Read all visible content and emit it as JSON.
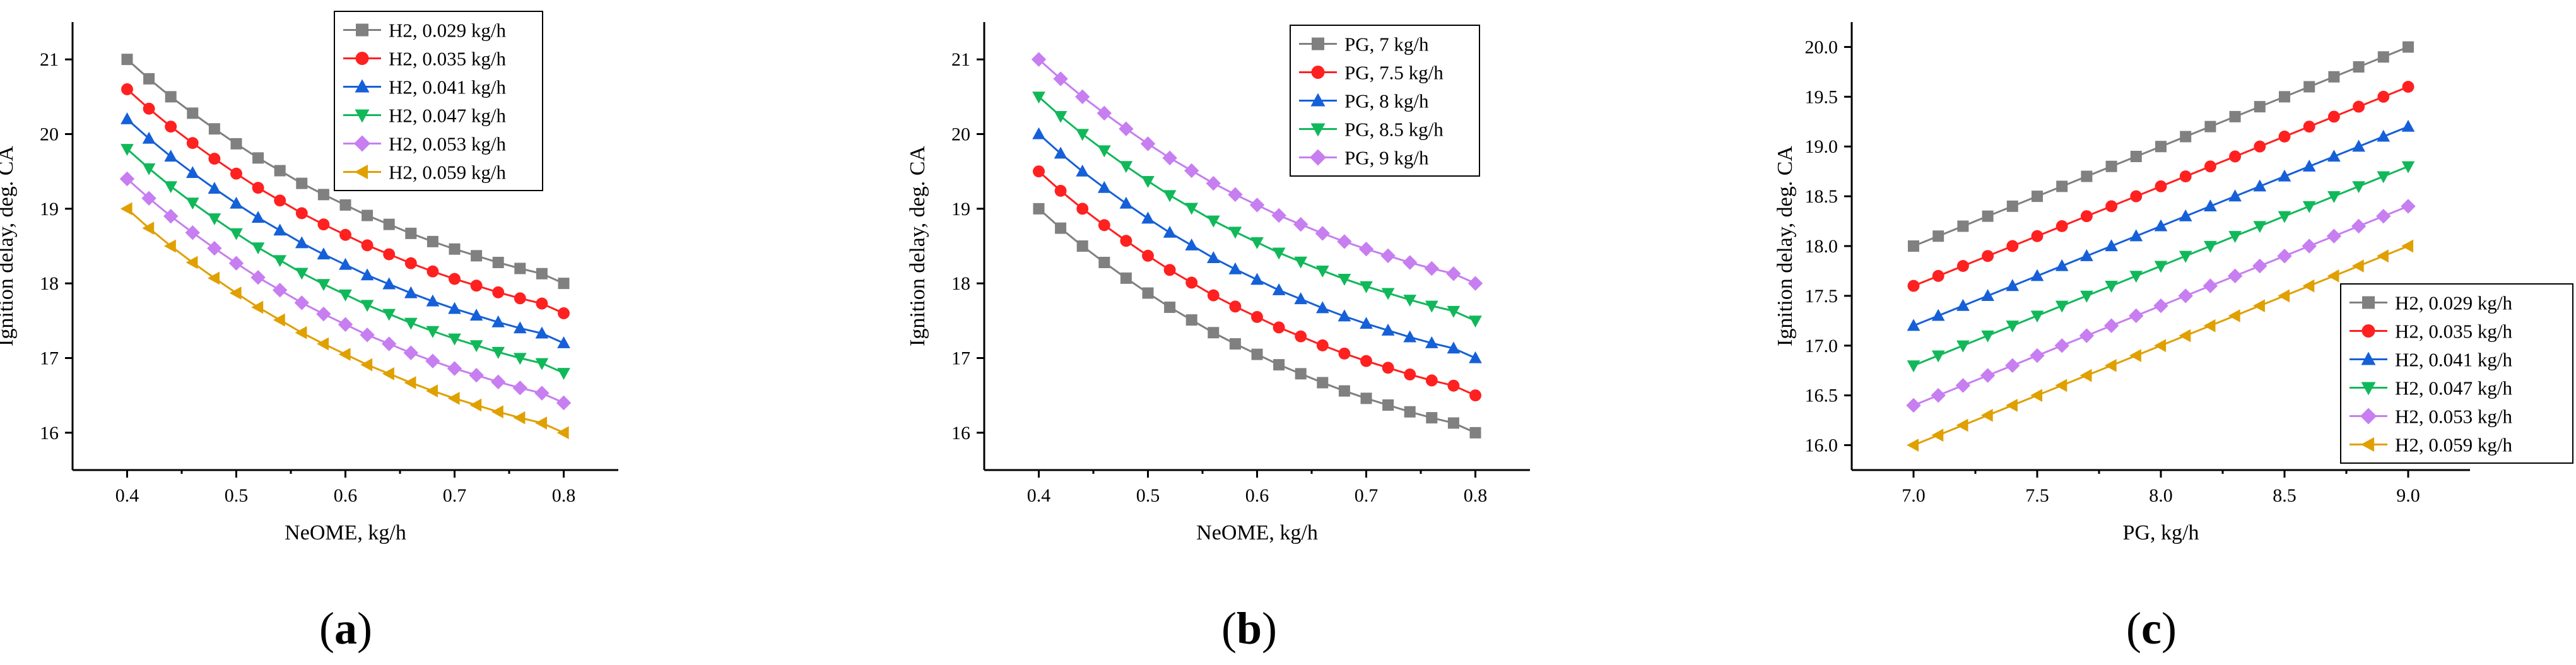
{
  "chart_data": [
    {
      "type": "line",
      "panel_label": "(a)",
      "xlabel": "NeOME, kg/h",
      "ylabel": "Ignition delay, deg. CA",
      "xlim": [
        0.35,
        0.85
      ],
      "ylim": [
        15.5,
        21.5
      ],
      "xticks": [
        0.4,
        0.5,
        0.6,
        0.7,
        0.8
      ],
      "yticks": [
        16,
        17,
        18,
        19,
        20,
        21
      ],
      "tick_labels_x": [
        "0.4",
        "0.5",
        "0.6",
        "0.7",
        "0.8"
      ],
      "tick_labels_y": [
        "16",
        "17",
        "18",
        "19",
        "20",
        "21"
      ],
      "legend_position": "top-right",
      "x": [
        0.4,
        0.42,
        0.44,
        0.46,
        0.48,
        0.5,
        0.52,
        0.54,
        0.56,
        0.58,
        0.6,
        0.62,
        0.64,
        0.66,
        0.68,
        0.7,
        0.72,
        0.74,
        0.76,
        0.78,
        0.8
      ],
      "series": [
        {
          "name": "H2, 0.029 kg/h",
          "color": "#808080",
          "marker": "square",
          "values": [
            21.0,
            20.74,
            20.5,
            20.28,
            20.07,
            19.87,
            19.68,
            19.51,
            19.34,
            19.19,
            19.05,
            18.91,
            18.79,
            18.67,
            18.56,
            18.46,
            18.37,
            18.28,
            18.2,
            18.13,
            18.0
          ]
        },
        {
          "name": "H2, 0.035 kg/h",
          "color": "#ff2020",
          "marker": "circle",
          "values": [
            20.6,
            20.34,
            20.1,
            19.88,
            19.67,
            19.47,
            19.28,
            19.11,
            18.94,
            18.79,
            18.65,
            18.51,
            18.39,
            18.27,
            18.16,
            18.06,
            17.97,
            17.88,
            17.8,
            17.73,
            17.6
          ]
        },
        {
          "name": "H2, 0.041 kg/h",
          "color": "#1560d8",
          "marker": "triangle-up",
          "values": [
            20.2,
            19.94,
            19.7,
            19.48,
            19.27,
            19.07,
            18.88,
            18.71,
            18.54,
            18.39,
            18.25,
            18.11,
            17.99,
            17.87,
            17.76,
            17.66,
            17.57,
            17.48,
            17.4,
            17.33,
            17.2
          ]
        },
        {
          "name": "H2, 0.047 kg/h",
          "color": "#11b85a",
          "marker": "triangle-down",
          "values": [
            19.8,
            19.54,
            19.3,
            19.08,
            18.87,
            18.67,
            18.48,
            18.31,
            18.14,
            17.99,
            17.85,
            17.71,
            17.59,
            17.47,
            17.36,
            17.26,
            17.17,
            17.08,
            17.0,
            16.93,
            16.8
          ]
        },
        {
          "name": "H2, 0.053 kg/h",
          "color": "#c77ef0",
          "marker": "diamond",
          "values": [
            19.4,
            19.14,
            18.9,
            18.68,
            18.47,
            18.27,
            18.08,
            17.91,
            17.74,
            17.59,
            17.45,
            17.31,
            17.19,
            17.07,
            16.96,
            16.86,
            16.77,
            16.68,
            16.6,
            16.53,
            16.4
          ]
        },
        {
          "name": "H2, 0.059 kg/h",
          "color": "#e0a000",
          "marker": "triangle-left",
          "values": [
            19.0,
            18.74,
            18.5,
            18.28,
            18.07,
            17.87,
            17.68,
            17.51,
            17.34,
            17.19,
            17.05,
            16.91,
            16.79,
            16.67,
            16.56,
            16.46,
            16.37,
            16.28,
            16.2,
            16.13,
            16.0
          ]
        }
      ]
    },
    {
      "type": "line",
      "panel_label": "(b)",
      "xlabel": "NeOME, kg/h",
      "ylabel": "Ignition delay, deg. CA",
      "xlim": [
        0.35,
        0.85
      ],
      "ylim": [
        15.5,
        21.5
      ],
      "xticks": [
        0.4,
        0.5,
        0.6,
        0.7,
        0.8
      ],
      "yticks": [
        16,
        17,
        18,
        19,
        20,
        21
      ],
      "tick_labels_x": [
        "0.4",
        "0.5",
        "0.6",
        "0.7",
        "0.8"
      ],
      "tick_labels_y": [
        "16",
        "17",
        "18",
        "19",
        "20",
        "21"
      ],
      "legend_position": "top-right",
      "x": [
        0.4,
        0.42,
        0.44,
        0.46,
        0.48,
        0.5,
        0.52,
        0.54,
        0.56,
        0.58,
        0.6,
        0.62,
        0.64,
        0.66,
        0.68,
        0.7,
        0.72,
        0.74,
        0.76,
        0.78,
        0.8
      ],
      "series": [
        {
          "name": "PG, 7 kg/h",
          "color": "#808080",
          "marker": "square",
          "values": [
            19.0,
            18.74,
            18.5,
            18.28,
            18.07,
            17.87,
            17.68,
            17.51,
            17.34,
            17.19,
            17.05,
            16.91,
            16.79,
            16.67,
            16.56,
            16.46,
            16.37,
            16.28,
            16.2,
            16.13,
            16.0
          ]
        },
        {
          "name": "PG, 7.5 kg/h",
          "color": "#ff2020",
          "marker": "circle",
          "values": [
            19.5,
            19.24,
            19.0,
            18.78,
            18.57,
            18.37,
            18.18,
            18.01,
            17.84,
            17.69,
            17.55,
            17.41,
            17.29,
            17.17,
            17.06,
            16.96,
            16.87,
            16.78,
            16.7,
            16.63,
            16.5
          ]
        },
        {
          "name": "PG, 8 kg/h",
          "color": "#1560d8",
          "marker": "triangle-up",
          "values": [
            20.0,
            19.74,
            19.5,
            19.28,
            19.07,
            18.87,
            18.68,
            18.51,
            18.34,
            18.19,
            18.05,
            17.91,
            17.79,
            17.67,
            17.56,
            17.46,
            17.37,
            17.28,
            17.2,
            17.13,
            17.0
          ]
        },
        {
          "name": "PG, 8.5 kg/h",
          "color": "#11b85a",
          "marker": "triangle-down",
          "values": [
            20.5,
            20.24,
            20.0,
            19.78,
            19.57,
            19.37,
            19.18,
            19.01,
            18.84,
            18.69,
            18.55,
            18.41,
            18.29,
            18.17,
            18.06,
            17.96,
            17.87,
            17.78,
            17.7,
            17.63,
            17.5
          ]
        },
        {
          "name": "PG, 9 kg/h",
          "color": "#c77ef0",
          "marker": "diamond",
          "values": [
            21.0,
            20.74,
            20.5,
            20.28,
            20.07,
            19.87,
            19.68,
            19.51,
            19.34,
            19.19,
            19.05,
            18.91,
            18.79,
            18.67,
            18.56,
            18.46,
            18.37,
            18.28,
            18.2,
            18.13,
            18.0
          ]
        }
      ]
    },
    {
      "type": "line",
      "panel_label": "(c)",
      "xlabel": "PG, kg/h",
      "ylabel": "Ignition delay, deg. CA",
      "xlim": [
        6.75,
        9.25
      ],
      "ylim": [
        15.75,
        20.25
      ],
      "xticks": [
        7.0,
        7.5,
        8.0,
        8.5,
        9.0
      ],
      "yticks": [
        16.0,
        16.5,
        17.0,
        17.5,
        18.0,
        18.5,
        19.0,
        19.5,
        20.0
      ],
      "tick_labels_x": [
        "7.0",
        "7.5",
        "8.0",
        "8.5",
        "9.0"
      ],
      "tick_labels_y": [
        "16.0",
        "16.5",
        "17.0",
        "17.5",
        "18.0",
        "18.5",
        "19.0",
        "19.5",
        "20.0"
      ],
      "legend_position": "bottom-right",
      "x": [
        7.0,
        7.1,
        7.2,
        7.3,
        7.4,
        7.5,
        7.6,
        7.7,
        7.8,
        7.9,
        8.0,
        8.1,
        8.2,
        8.3,
        8.4,
        8.5,
        8.6,
        8.7,
        8.8,
        8.9,
        9.0
      ],
      "series": [
        {
          "name": "H2, 0.029 kg/h",
          "color": "#808080",
          "marker": "square",
          "values": [
            18.0,
            18.1,
            18.2,
            18.3,
            18.4,
            18.5,
            18.6,
            18.7,
            18.8,
            18.9,
            19.0,
            19.1,
            19.2,
            19.3,
            19.4,
            19.5,
            19.6,
            19.7,
            19.8,
            19.9,
            20.0
          ]
        },
        {
          "name": "H2, 0.035 kg/h",
          "color": "#ff2020",
          "marker": "circle",
          "values": [
            17.6,
            17.7,
            17.8,
            17.9,
            18.0,
            18.1,
            18.2,
            18.3,
            18.4,
            18.5,
            18.6,
            18.7,
            18.8,
            18.9,
            19.0,
            19.1,
            19.2,
            19.3,
            19.4,
            19.5,
            19.6
          ]
        },
        {
          "name": "H2, 0.041 kg/h",
          "color": "#1560d8",
          "marker": "triangle-up",
          "values": [
            17.2,
            17.3,
            17.4,
            17.5,
            17.6,
            17.7,
            17.8,
            17.9,
            18.0,
            18.1,
            18.2,
            18.3,
            18.4,
            18.5,
            18.6,
            18.7,
            18.8,
            18.9,
            19.0,
            19.1,
            19.2
          ]
        },
        {
          "name": "H2, 0.047 kg/h",
          "color": "#11b85a",
          "marker": "triangle-down",
          "values": [
            16.8,
            16.9,
            17.0,
            17.1,
            17.2,
            17.3,
            17.4,
            17.5,
            17.6,
            17.7,
            17.8,
            17.9,
            18.0,
            18.1,
            18.2,
            18.3,
            18.4,
            18.5,
            18.6,
            18.7,
            18.8
          ]
        },
        {
          "name": "H2, 0.053 kg/h",
          "color": "#c77ef0",
          "marker": "diamond",
          "values": [
            16.4,
            16.5,
            16.6,
            16.7,
            16.8,
            16.9,
            17.0,
            17.1,
            17.2,
            17.3,
            17.4,
            17.5,
            17.6,
            17.7,
            17.8,
            17.9,
            18.0,
            18.1,
            18.2,
            18.3,
            18.4
          ]
        },
        {
          "name": "H2, 0.059 kg/h",
          "color": "#e0a000",
          "marker": "triangle-left",
          "values": [
            16.0,
            16.1,
            16.2,
            16.3,
            16.4,
            16.5,
            16.6,
            16.7,
            16.8,
            16.9,
            17.0,
            17.1,
            17.2,
            17.3,
            17.4,
            17.5,
            17.6,
            17.7,
            17.8,
            17.9,
            18.0
          ]
        }
      ]
    }
  ]
}
